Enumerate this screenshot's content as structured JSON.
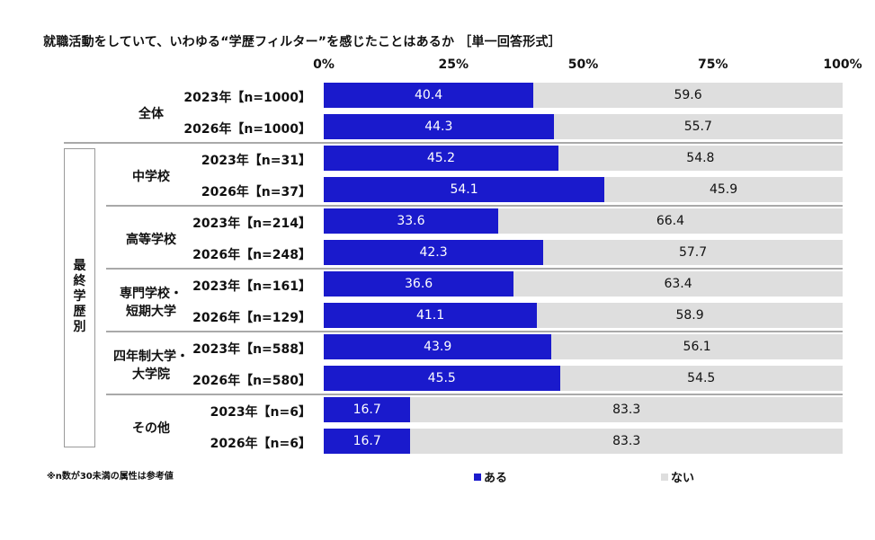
{
  "chart_data": {
    "type": "bar",
    "title": "就職活動をしていて、いわゆる“学歴フィルター”を感じたことはあるか ［単一回答形式］",
    "x_ticks": [
      "0%",
      "25%",
      "50%",
      "75%",
      "100%"
    ],
    "xlim": [
      0,
      100
    ],
    "stacked": true,
    "category_box_label": "最終学歴別",
    "groups": [
      {
        "label": "全体",
        "boxed": false,
        "rows": [
          {
            "label": "2023年【n=1000】",
            "values": [
              40.4,
              59.6
            ]
          },
          {
            "label": "2026年【n=1000】",
            "values": [
              44.3,
              55.7
            ]
          }
        ]
      },
      {
        "label": "中学校",
        "boxed": true,
        "rows": [
          {
            "label": "2023年【n=31】",
            "values": [
              45.2,
              54.8
            ]
          },
          {
            "label": "2026年【n=37】",
            "values": [
              54.1,
              45.9
            ]
          }
        ]
      },
      {
        "label": "高等学校",
        "boxed": true,
        "rows": [
          {
            "label": "2023年【n=214】",
            "values": [
              33.6,
              66.4
            ]
          },
          {
            "label": "2026年【n=248】",
            "values": [
              42.3,
              57.7
            ]
          }
        ]
      },
      {
        "label": "専門学校・短期大学",
        "boxed": true,
        "rows": [
          {
            "label": "2023年【n=161】",
            "values": [
              36.6,
              63.4
            ]
          },
          {
            "label": "2026年【n=129】",
            "values": [
              41.1,
              58.9
            ]
          }
        ]
      },
      {
        "label": "四年制大学・大学院",
        "boxed": true,
        "rows": [
          {
            "label": "2023年【n=588】",
            "values": [
              43.9,
              56.1
            ]
          },
          {
            "label": "2026年【n=580】",
            "values": [
              45.5,
              54.5
            ]
          }
        ]
      },
      {
        "label": "その他",
        "boxed": true,
        "rows": [
          {
            "label": "2023年【n=6】",
            "values": [
              16.7,
              83.3
            ]
          },
          {
            "label": "2026年【n=6】",
            "values": [
              16.7,
              83.3
            ]
          }
        ]
      }
    ],
    "series": [
      {
        "name": "ある",
        "color": "#1a1acc"
      },
      {
        "name": "ない",
        "color": "#dedede"
      }
    ],
    "grid": false,
    "legend_position": "bottom"
  },
  "footnote": "※n数が30未満の属性は参考値"
}
